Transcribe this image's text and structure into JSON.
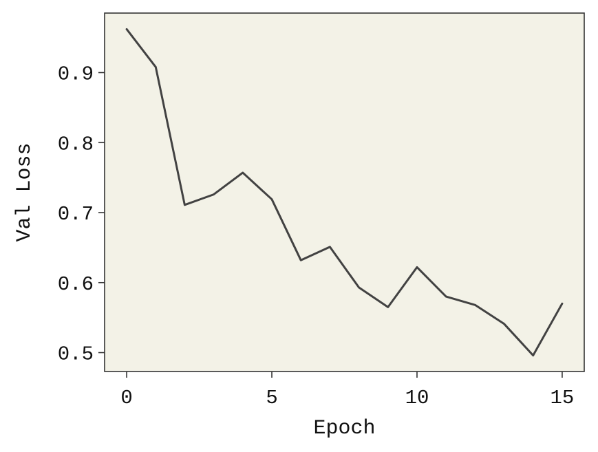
{
  "chart_data": {
    "type": "line",
    "title": "",
    "xlabel": "Epoch",
    "ylabel": "Val Loss",
    "x": [
      0,
      1,
      2,
      3,
      4,
      5,
      6,
      7,
      8,
      9,
      10,
      11,
      12,
      13,
      14,
      15
    ],
    "series": [
      {
        "values": [
          0.962,
          0.908,
          0.711,
          0.726,
          0.757,
          0.719,
          0.632,
          0.651,
          0.593,
          0.565,
          0.622,
          0.58,
          0.568,
          0.541,
          0.496,
          0.57
        ]
      }
    ],
    "xlim": [
      -0.76,
      15.76
    ],
    "ylim": [
      0.473,
      0.985
    ],
    "xticks": [
      0,
      5,
      10,
      15
    ],
    "yticks": [
      0.5,
      0.6,
      0.7,
      0.8,
      0.9
    ],
    "xtick_labels": [
      "0",
      "5",
      "10",
      "15"
    ],
    "ytick_labels": [
      "0.5",
      "0.6",
      "0.7",
      "0.8",
      "0.9"
    ],
    "grid": false,
    "legend": "none",
    "colors": {
      "plot_background": "#f3f2e7",
      "line": "#424242",
      "axes": "#333333"
    }
  }
}
